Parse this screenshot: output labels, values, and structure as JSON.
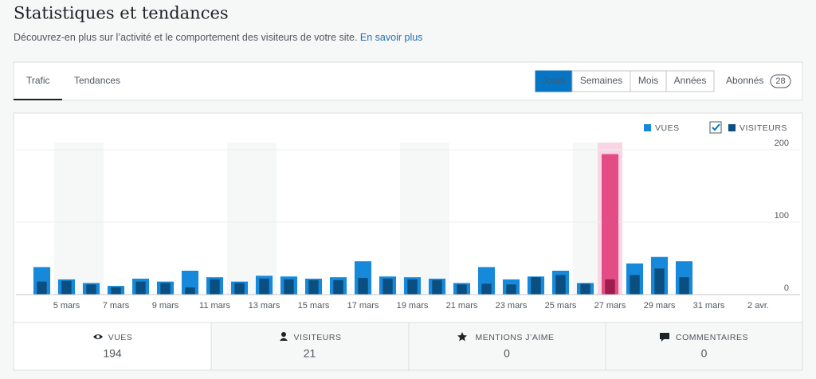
{
  "header": {
    "title": "Statistiques et tendances",
    "description": "Découvrez-en plus sur l’activité et le comportement des visiteurs de votre site.",
    "link": "En savoir plus"
  },
  "tabs": [
    "Trafic",
    "Tendances"
  ],
  "periods": [
    "Jours",
    "Semaines",
    "Mois",
    "Années"
  ],
  "followers": {
    "label": "Abonnés",
    "count": 28
  },
  "chart_data": {
    "type": "bar",
    "categories": [
      null,
      "5 mars",
      null,
      "7 mars",
      null,
      "9 mars",
      null,
      "11 mars",
      null,
      "13 mars",
      null,
      "15 mars",
      null,
      "17 mars",
      null,
      "19 mars",
      null,
      "21 mars",
      null,
      "23 mars",
      null,
      "25 mars",
      null,
      "27 mars",
      null,
      "29 mars",
      null,
      "31 mars",
      null,
      "2 avr."
    ],
    "series": [
      {
        "name": "VUES",
        "color": "#1689db",
        "values": [
          38,
          21,
          16,
          12,
          22,
          18,
          33,
          24,
          18,
          26,
          25,
          22,
          24,
          46,
          25,
          24,
          22,
          16,
          38,
          21,
          25,
          33,
          16,
          194,
          43,
          52,
          46,
          0,
          0,
          0
        ]
      },
      {
        "name": "VISITEURS",
        "color": "#0b4e80",
        "values": [
          18,
          19,
          14,
          10,
          18,
          16,
          10,
          21,
          16,
          22,
          21,
          20,
          20,
          23,
          22,
          21,
          20,
          14,
          15,
          14,
          24,
          27,
          15,
          21,
          27,
          36,
          24,
          0,
          0,
          0
        ]
      }
    ],
    "ylim": [
      0,
      210
    ],
    "yticks": [
      0,
      100,
      200
    ],
    "grid": true,
    "highlight": {
      "index": 23,
      "color": "#e34c84",
      "dark": "#9c1d4e",
      "band": "#f9d6e3"
    }
  },
  "summary": [
    {
      "label": "VUES",
      "value": 194
    },
    {
      "label": "VISITEURS",
      "value": 21
    },
    {
      "label": "MENTIONS J’AIME",
      "value": 0
    },
    {
      "label": "COMMENTAIRES",
      "value": 0
    }
  ]
}
